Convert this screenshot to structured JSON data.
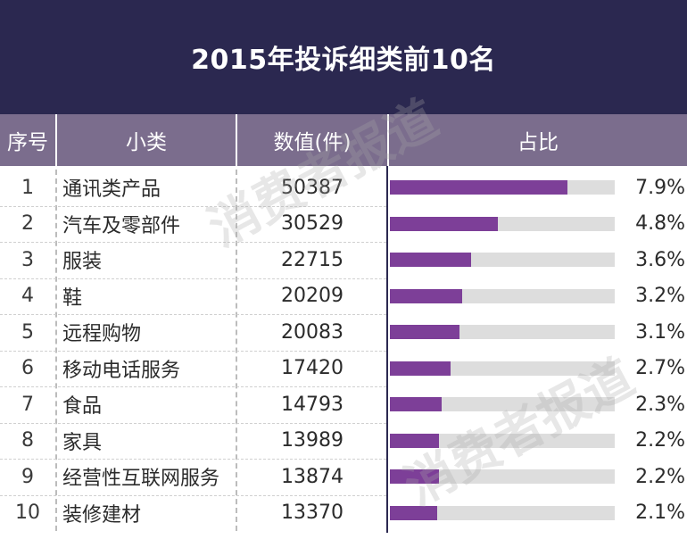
{
  "title": "2015年投诉细类前10名",
  "headers": {
    "rank": "序号",
    "category": "小类",
    "value": "数值(件)",
    "share": "占比"
  },
  "watermark": "消费者报道",
  "colors": {
    "title_bg": "#2b2850",
    "header_bg": "#7b6d8d",
    "bar": "#7d3f98",
    "track": "#dddddd"
  },
  "chart_data": {
    "type": "bar",
    "title": "2015年投诉细类前10名",
    "categories": [
      "通讯类产品",
      "汽车及零部件",
      "服装",
      "鞋",
      "远程购物",
      "移动电话服务",
      "食品",
      "家具",
      "经营性互联网服务",
      "装修建材"
    ],
    "ranks": [
      "1",
      "2",
      "3",
      "4",
      "5",
      "6",
      "7",
      "8",
      "9",
      "10"
    ],
    "series": [
      {
        "name": "数值(件)",
        "values": [
          50387,
          30529,
          22715,
          20209,
          20083,
          17420,
          14793,
          13989,
          13874,
          13370
        ]
      },
      {
        "name": "占比",
        "values": [
          7.9,
          4.8,
          3.6,
          3.2,
          3.1,
          2.7,
          2.3,
          2.2,
          2.2,
          2.1
        ]
      }
    ],
    "value_labels": [
      "50387",
      "30529",
      "22715",
      "20209",
      "20083",
      "17420",
      "14793",
      "13989",
      "13874",
      "13370"
    ],
    "share_labels": [
      "7.9%",
      "4.8%",
      "3.6%",
      "3.2%",
      "3.1%",
      "2.7%",
      "2.3%",
      "2.2%",
      "2.2%",
      "2.1%"
    ]
  }
}
